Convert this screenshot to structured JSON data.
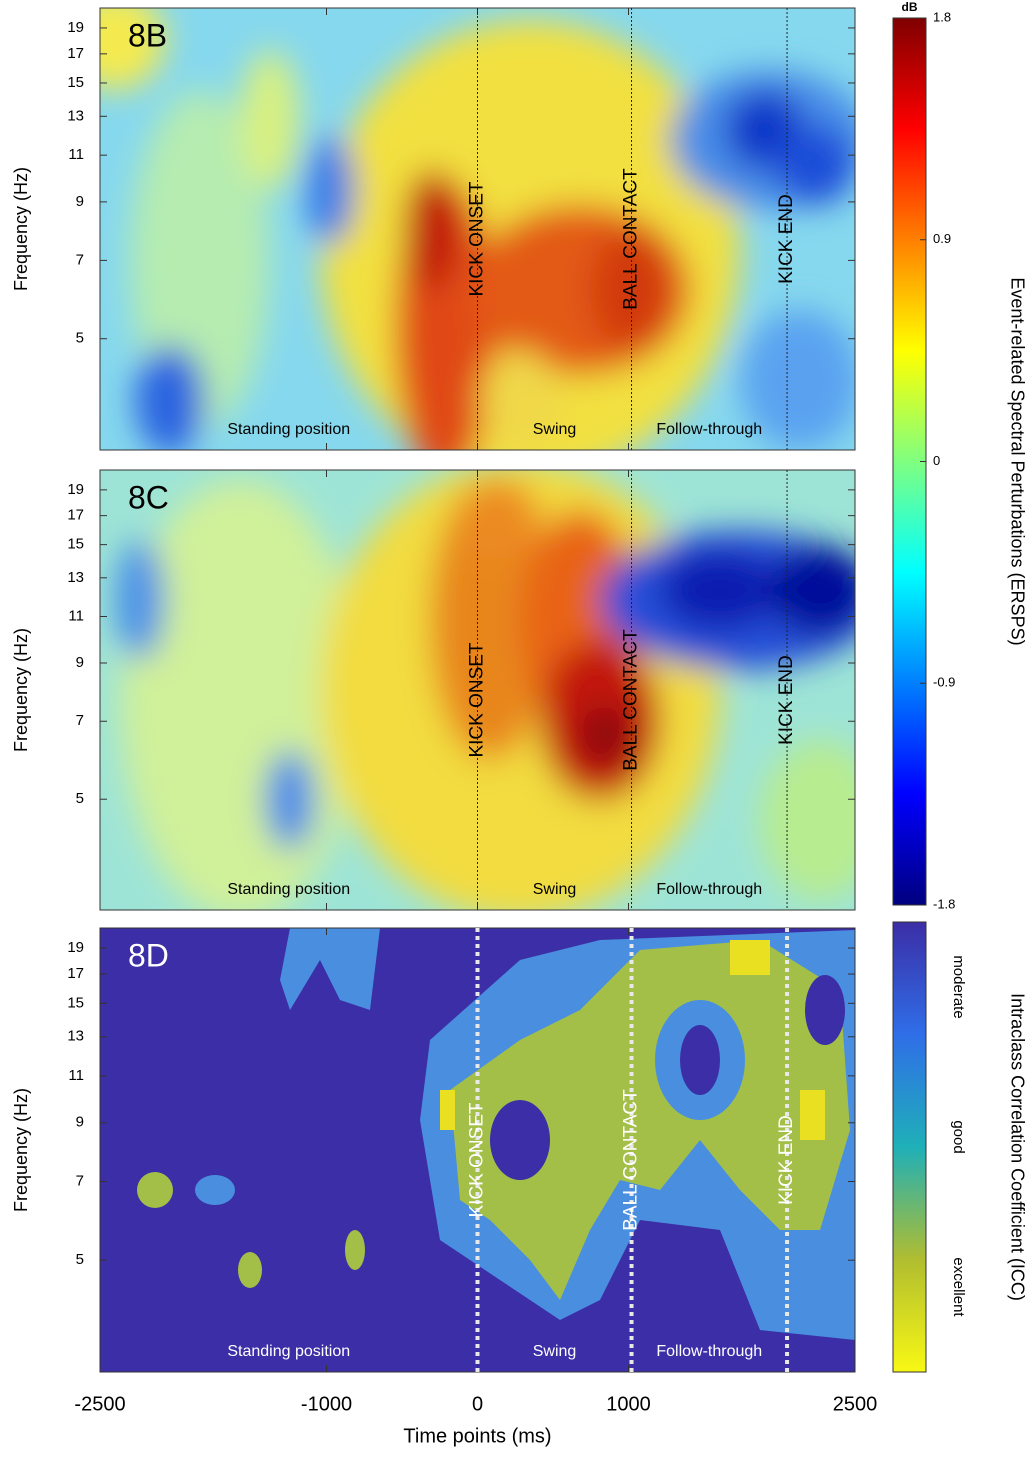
{
  "chart_data": {
    "type": "heatmap",
    "x_label": "Time points (ms)",
    "y_label": "Frequency (Hz)",
    "xlim": [
      -2500,
      2500
    ],
    "xticks": [
      -2500,
      -1000,
      0,
      1000,
      2500
    ],
    "ylim": [
      3.1,
      20.7
    ],
    "yticks": [
      5,
      7,
      9,
      11,
      13,
      15,
      17,
      19
    ],
    "log_y": true,
    "panels": [
      {
        "label": "8B",
        "text_color": "#000000"
      },
      {
        "label": "8C",
        "text_color": "#000000"
      },
      {
        "label": "8D",
        "text_color": "#ffffff"
      }
    ],
    "events": [
      {
        "label": "KICK ONSET",
        "x": 0
      },
      {
        "label": "BALL CONTACT",
        "x": 1020
      },
      {
        "label": "KICK END",
        "x": 2050
      }
    ],
    "phases": [
      "Standing position",
      "Swing",
      "Follow-through"
    ],
    "colorbars": [
      {
        "title": "Event-related Spectral Perturbations (ERSPS)",
        "unit": "dB",
        "lim": [
          -1.8,
          1.8
        ],
        "ticks": [
          1.8,
          0.9,
          0,
          -0.9,
          -1.8
        ]
      },
      {
        "title": "Intraclass Correlation Coefficient (ICC)",
        "labels": [
          "moderate",
          "good",
          "excellent"
        ]
      }
    ]
  }
}
